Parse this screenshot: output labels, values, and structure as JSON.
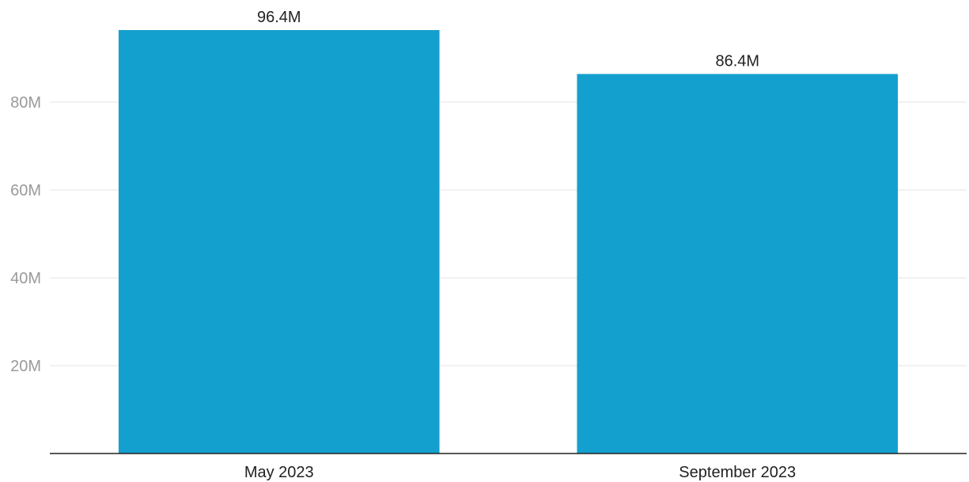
{
  "chart_data": {
    "type": "bar",
    "categories": [
      "May 2023",
      "September 2023"
    ],
    "values": [
      96.4,
      86.4
    ],
    "data_labels": [
      "96.4M",
      "86.4M"
    ],
    "ylim": [
      0,
      100
    ],
    "yticks": [
      20,
      40,
      60,
      80
    ],
    "ytick_labels": [
      "20M",
      "40M",
      "60M",
      "80M"
    ],
    "grid": true,
    "colors": {
      "bar": "#14a0ce",
      "grid": "#e3e3e3",
      "axis": "#222222"
    }
  }
}
